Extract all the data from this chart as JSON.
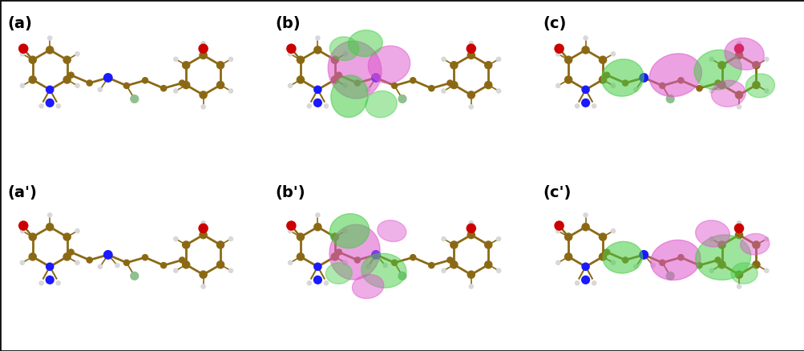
{
  "figsize": [
    10.04,
    4.38
  ],
  "dpi": 100,
  "background_color": "#ffffff",
  "panels": [
    {
      "label": "(a)",
      "row": 0,
      "col": 0
    },
    {
      "label": "(b)",
      "row": 0,
      "col": 1
    },
    {
      "label": "(c)",
      "row": 0,
      "col": 2
    },
    {
      "label": "(a')",
      "row": 1,
      "col": 0
    },
    {
      "label": "(b')",
      "row": 1,
      "col": 1
    },
    {
      "label": "(c')",
      "row": 1,
      "col": 2
    }
  ],
  "label_fontsize": 14,
  "label_fontweight": "bold",
  "label_color": "#000000",
  "ncols": 3,
  "nrows": 2,
  "mol_bond_color": "#8B6914",
  "mol_h_color": "#d8d8d8",
  "mol_o_color": "#cc0000",
  "mol_n_color": "#1a1aff",
  "mol_f_color": "#90c090",
  "homo_pink": "#dd55cc",
  "homo_green": "#44cc44",
  "border_color": "#111111",
  "border_linewidth": 2.0
}
